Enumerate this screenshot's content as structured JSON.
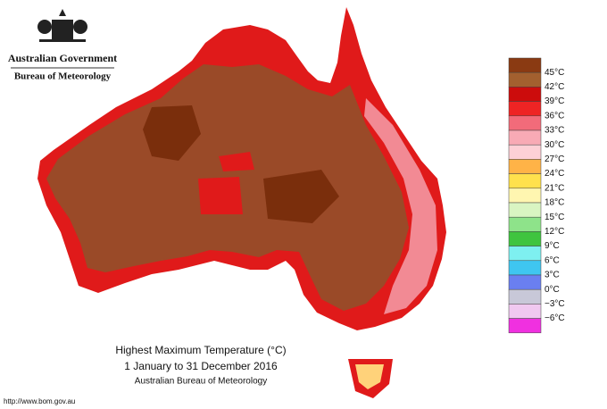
{
  "header": {
    "line1": "Australian Government",
    "line2": "Bureau of Meteorology"
  },
  "legend": {
    "labels": [
      "45°C",
      "42°C",
      "39°C",
      "36°C",
      "33°C",
      "30°C",
      "27°C",
      "24°C",
      "21°C",
      "18°C",
      "15°C",
      "12°C",
      "9°C",
      "6°C",
      "3°C",
      "0°C",
      "−3°C",
      "−6°C"
    ]
  },
  "caption": {
    "title": "Highest Maximum Temperature (°C)",
    "period": "1 January to 31 December 2016",
    "source": "Australian Bureau of Meteorology"
  },
  "footer": {
    "url": "http://www.bom.gov.au"
  }
}
